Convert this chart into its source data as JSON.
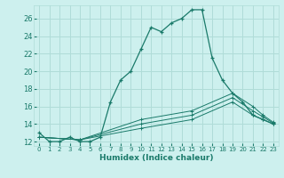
{
  "xlabel": "Humidex (Indice chaleur)",
  "bg_color": "#cdf0ee",
  "grid_color": "#b0dcd8",
  "line_color": "#1a7a6a",
  "xlim": [
    -0.5,
    23.5
  ],
  "ylim": [
    11.5,
    27.5
  ],
  "xticks": [
    0,
    1,
    2,
    3,
    4,
    5,
    6,
    7,
    8,
    9,
    10,
    11,
    12,
    13,
    14,
    15,
    16,
    17,
    18,
    19,
    20,
    21,
    22,
    23
  ],
  "yticks": [
    12,
    14,
    16,
    18,
    20,
    22,
    24,
    26
  ],
  "series_main": {
    "x": [
      0,
      1,
      2,
      3,
      4,
      5,
      6,
      7,
      8,
      9,
      10,
      11,
      12,
      13,
      14,
      15,
      16,
      17,
      18,
      19,
      20,
      21,
      22,
      23
    ],
    "y": [
      13,
      12,
      12,
      12.5,
      12,
      12,
      12.5,
      16.5,
      19,
      20,
      22.5,
      25,
      24.5,
      25.5,
      26,
      27,
      27,
      21.5,
      19,
      17.5,
      16.5,
      15,
      14.5,
      14
    ]
  },
  "series_secondary": [
    {
      "x": [
        0,
        4,
        10,
        15,
        19,
        21,
        22,
        23
      ],
      "y": [
        12.5,
        12.2,
        13.5,
        14.5,
        16.5,
        15.0,
        14.5,
        14.0
      ]
    },
    {
      "x": [
        0,
        4,
        10,
        15,
        19,
        21,
        22,
        23
      ],
      "y": [
        12.5,
        12.2,
        14.0,
        15.0,
        17.0,
        15.5,
        14.8,
        14.1
      ]
    },
    {
      "x": [
        0,
        4,
        10,
        15,
        19,
        21,
        22,
        23
      ],
      "y": [
        12.5,
        12.2,
        14.5,
        15.5,
        17.5,
        16.0,
        15.0,
        14.2
      ]
    }
  ]
}
